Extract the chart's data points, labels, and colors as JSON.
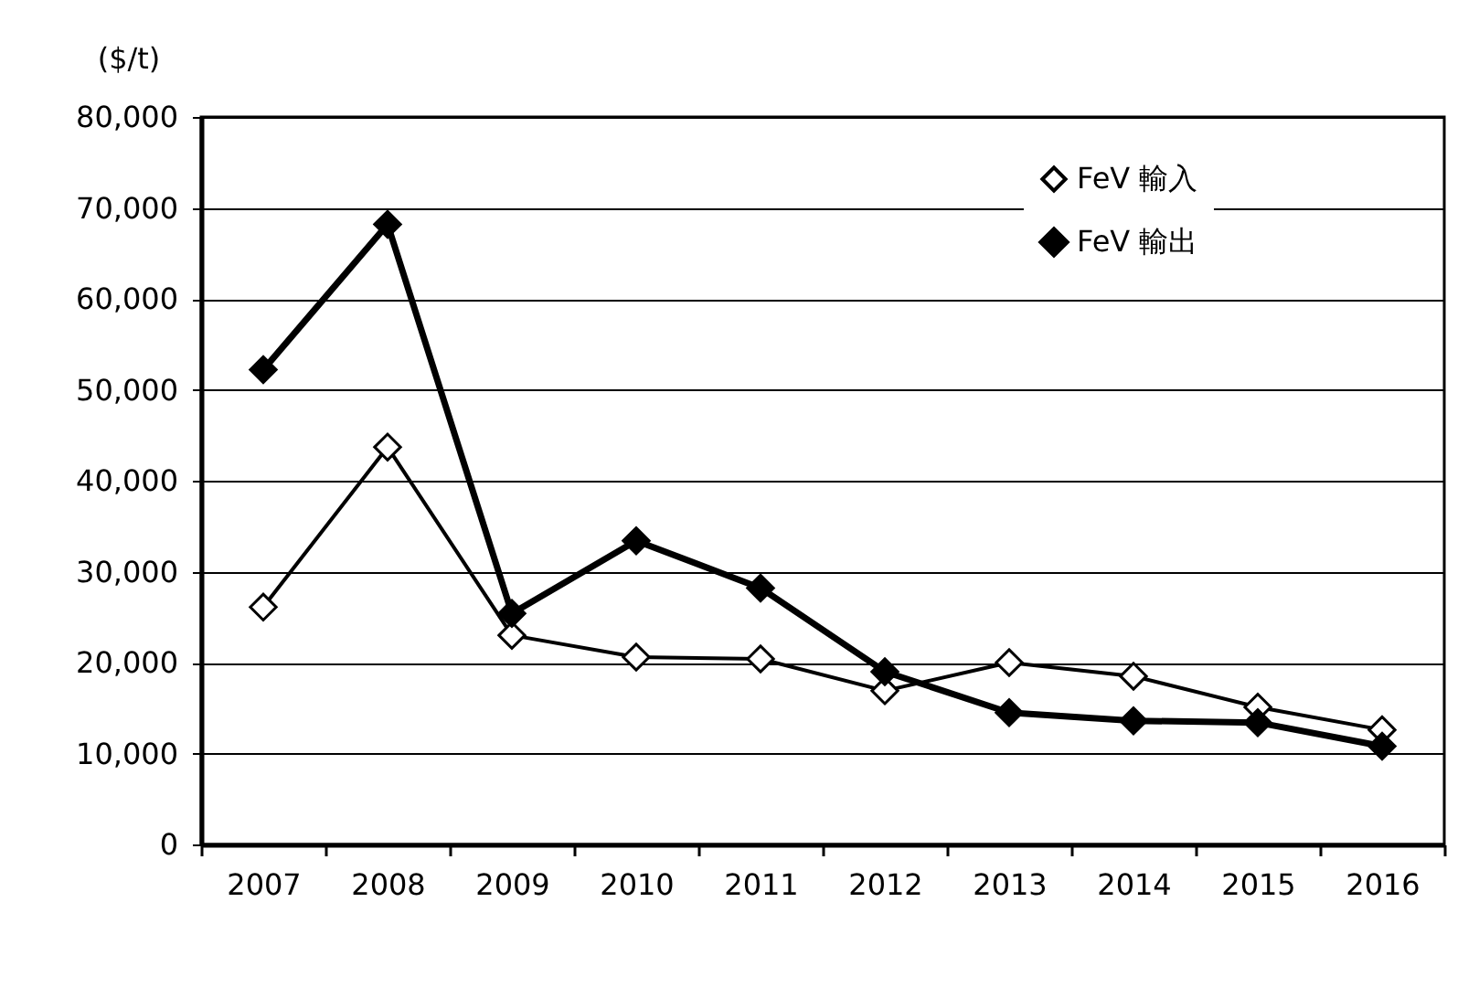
{
  "chart_data": {
    "type": "line",
    "ylabel": "($/t)",
    "categories": [
      "2007",
      "2008",
      "2009",
      "2010",
      "2011",
      "2012",
      "2013",
      "2014",
      "2015",
      "2016"
    ],
    "series": [
      {
        "name": "FeV 輸入",
        "color": "#000000",
        "values": [
          26100,
          43700,
          23000,
          20600,
          20400,
          16900,
          20000,
          18500,
          15100,
          12600
        ]
      },
      {
        "name": "FeV 輸出",
        "color": "#000000",
        "values": [
          52200,
          68200,
          25400,
          33400,
          28200,
          19000,
          14500,
          13600,
          13400,
          10800
        ]
      }
    ],
    "ylim": [
      0,
      80000
    ],
    "yticks": [
      0,
      {
        "value": 10000,
        "label": "10,000"
      },
      {
        "value": 20000,
        "label": "20,000"
      },
      {
        "value": 30000,
        "label": "30,000"
      },
      {
        "value": 40000,
        "label": "40,000"
      },
      {
        "value": 50000,
        "label": "50,000"
      },
      {
        "value": 60000,
        "label": "60,000"
      },
      {
        "value": 70000,
        "label": "70,000"
      },
      {
        "value": 80000,
        "label": "80,000"
      }
    ],
    "grid": "y",
    "legend": "top right",
    "marker": "diamond",
    "line_style": "solid"
  }
}
